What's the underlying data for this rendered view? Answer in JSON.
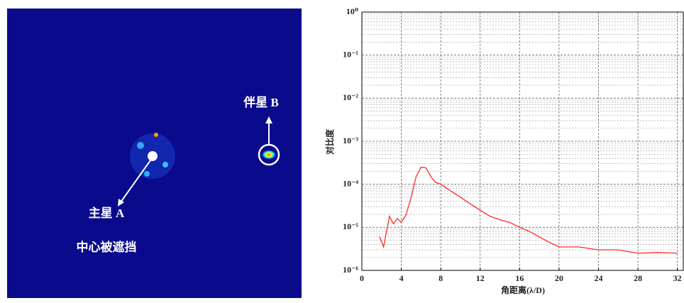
{
  "image": {
    "companion_label": "伴星 B",
    "primary_label": "主星 A",
    "mask_label": "中心被遮挡"
  },
  "chart_data": {
    "type": "line",
    "x_label": "角距离(λ/D)",
    "y_label": "对比度",
    "log_y": true,
    "grid": true,
    "minor_grid": true,
    "xlim": [
      0,
      32.6
    ],
    "xticks": [
      0,
      4,
      8,
      12,
      16,
      20,
      24,
      28,
      32
    ],
    "ylim": [
      1e-06,
      1
    ],
    "yticks": [
      {
        "value": 1e-06,
        "label": "10⁻⁶"
      },
      {
        "value": 1e-05,
        "label": "10⁻⁵"
      },
      {
        "value": 0.0001,
        "label": "10⁻⁴"
      },
      {
        "value": 0.001,
        "label": "10⁻³"
      },
      {
        "value": 0.01,
        "label": "10⁻²"
      },
      {
        "value": 0.1,
        "label": "10⁻¹"
      },
      {
        "value": 1,
        "label": "10⁰"
      }
    ],
    "series": [
      {
        "color": "#ff2a2a",
        "x": [
          1.8,
          2.2,
          2.5,
          2.8,
          3.2,
          3.6,
          4,
          4.5,
          5,
          5.5,
          6,
          6.5,
          7,
          7.5,
          8,
          9,
          10,
          11,
          12,
          13,
          14,
          15,
          16,
          17,
          18,
          19,
          20,
          22,
          24,
          26,
          28,
          30,
          32
        ],
        "values": [
          6e-06,
          3.5e-06,
          8e-06,
          1.8e-05,
          1.2e-05,
          1.6e-05,
          1.3e-05,
          2e-05,
          5e-05,
          0.00015,
          0.00025,
          0.00024,
          0.00015,
          0.00011,
          0.0001,
          7e-05,
          5e-05,
          3.5e-05,
          2.5e-05,
          1.8e-05,
          1.5e-05,
          1.3e-05,
          1e-05,
          8e-06,
          6e-06,
          4.5e-06,
          3.5e-06,
          3.5e-06,
          3e-06,
          3e-06,
          2.5e-06,
          2.6e-06,
          2.5e-06
        ]
      }
    ]
  }
}
